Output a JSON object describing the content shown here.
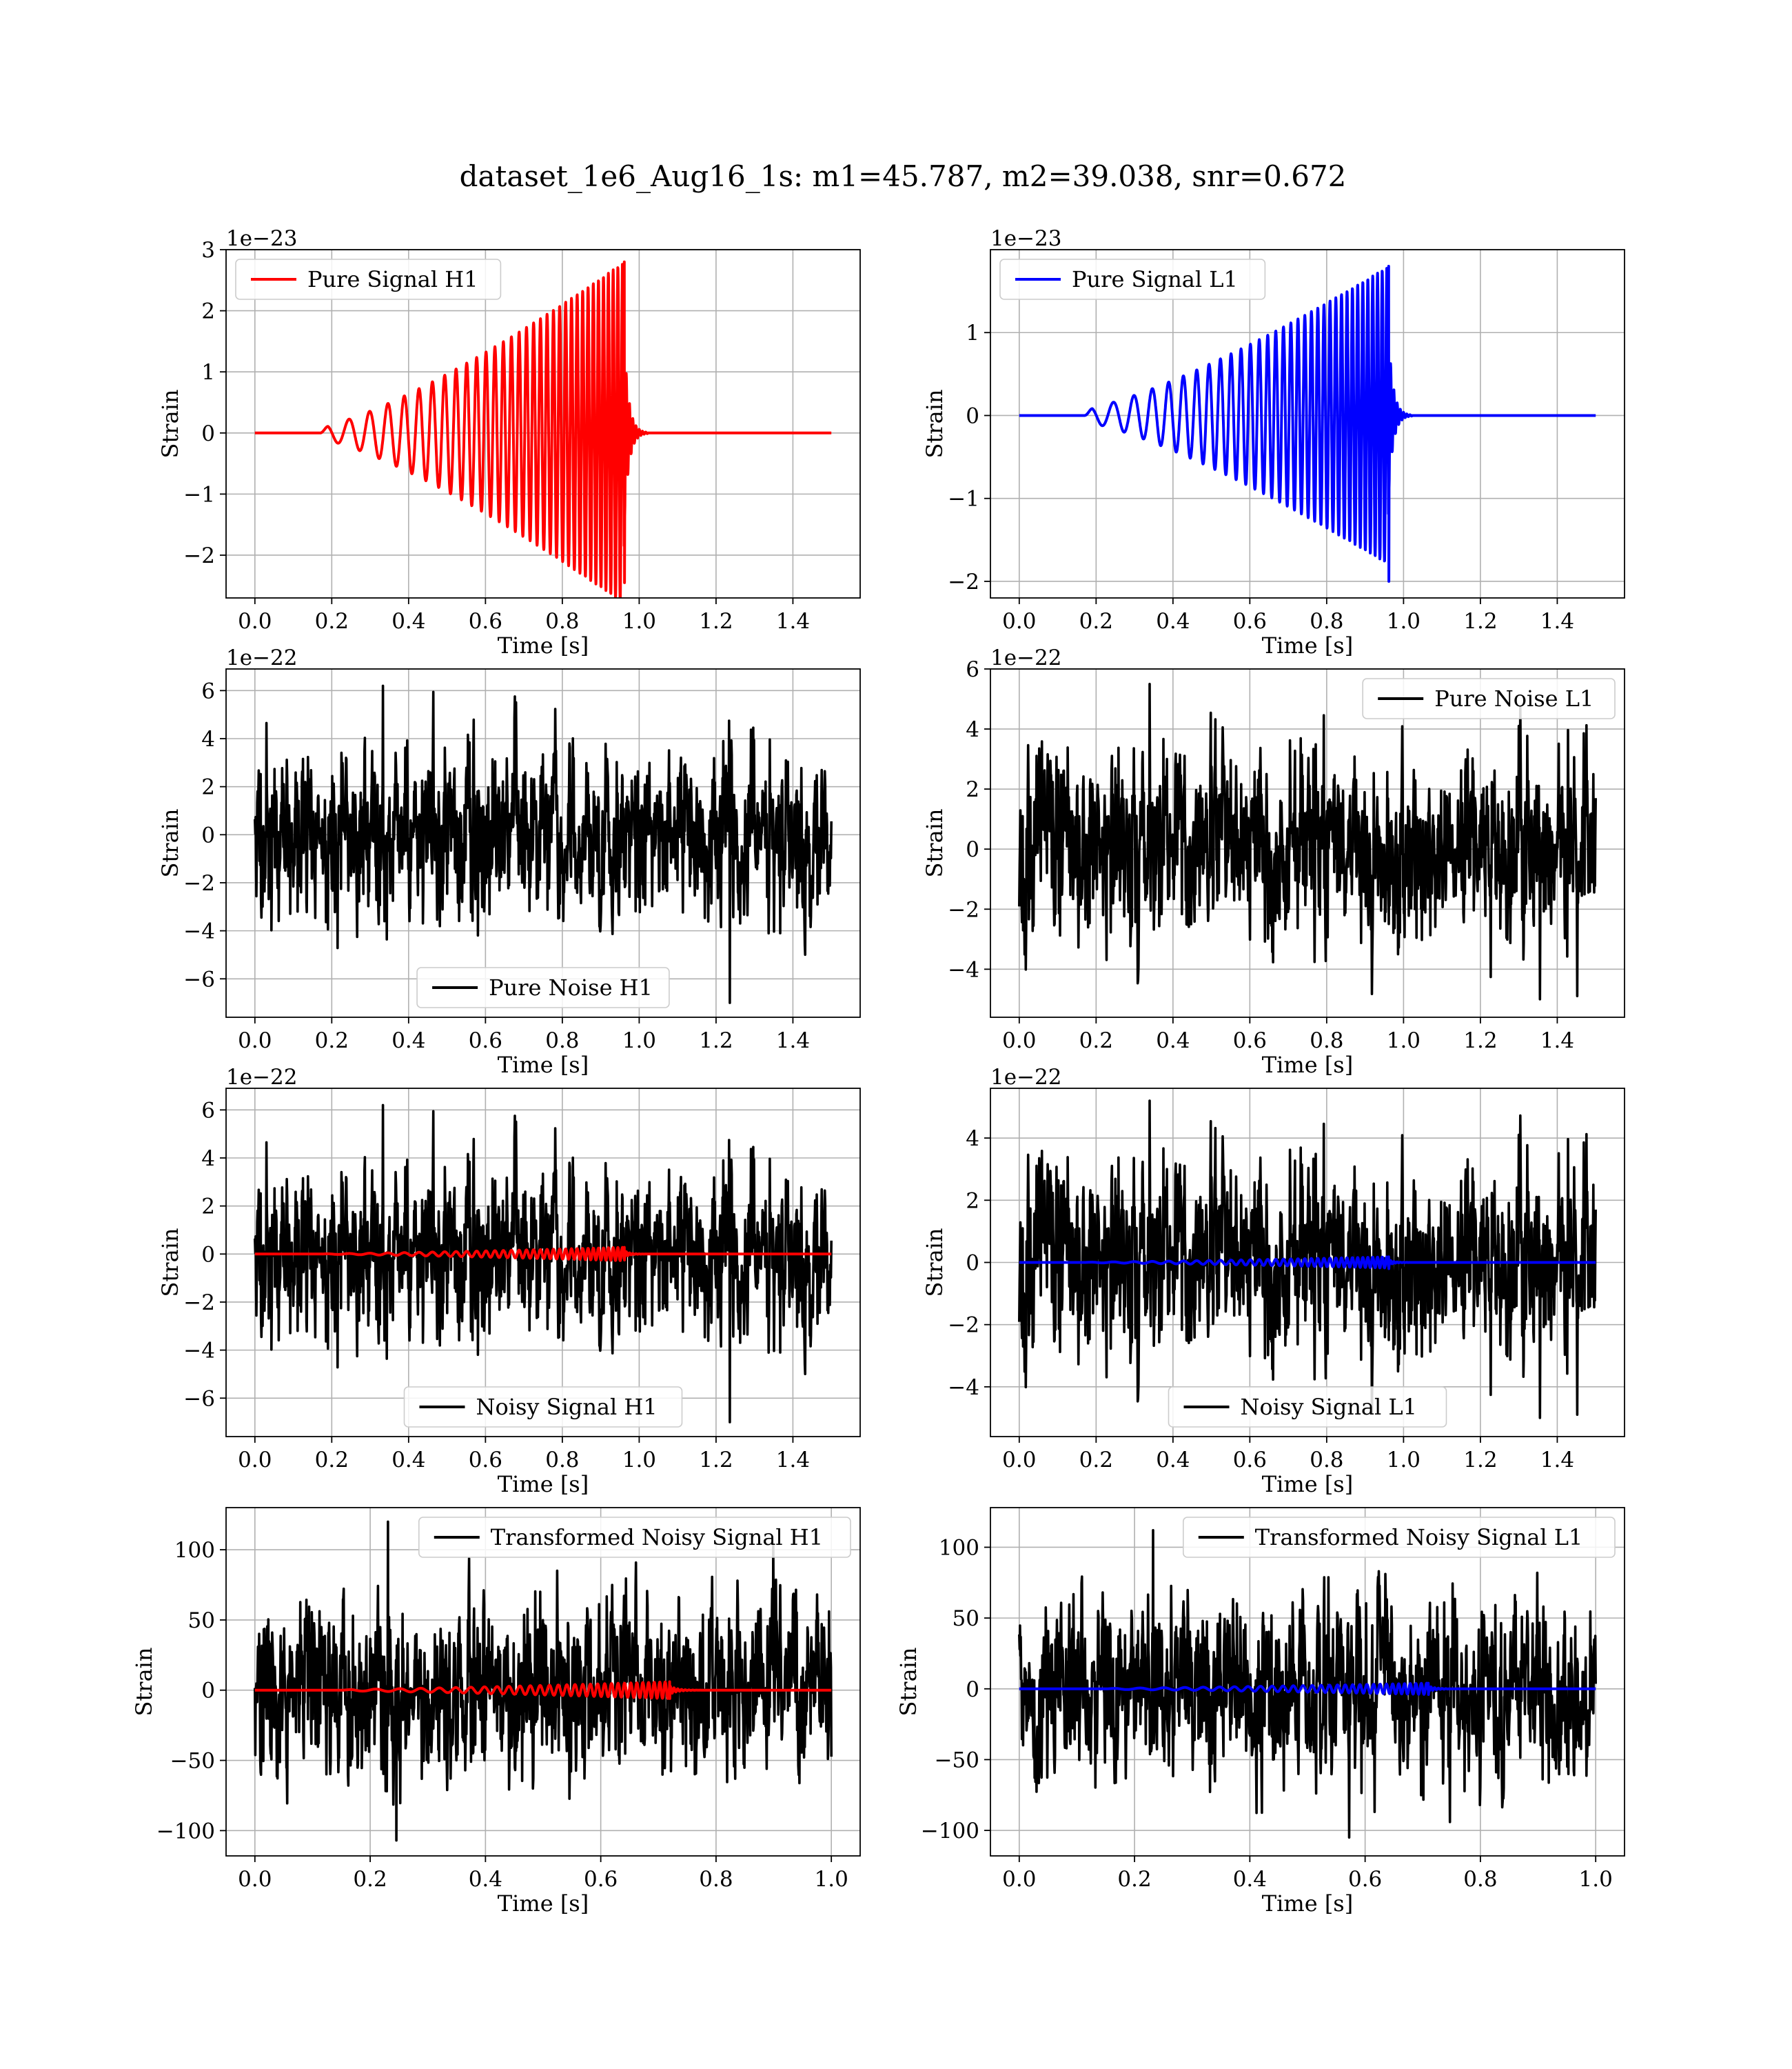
{
  "figure": {
    "title": "dataset_1e6_Aug16_1s: m1=45.787, m2=39.038, snr=0.672"
  },
  "colors": {
    "h1_signal": "#ff0000",
    "l1_signal": "#0000ff",
    "noise": "#000000",
    "grid": "#b0b0b0"
  },
  "chart_data": [
    {
      "type": "line",
      "panel": "pure-signal-h1",
      "xlabel": "Time [s]",
      "ylabel": "Strain",
      "offset_text": "1e−23",
      "xlim": [
        -0.075,
        1.575
      ],
      "ylim": [
        -2.7,
        3.0
      ],
      "xticks": [
        0.0,
        0.2,
        0.4,
        0.6,
        0.8,
        1.0,
        1.2,
        1.4
      ],
      "xticklabels": [
        "0.0",
        "0.2",
        "0.4",
        "0.6",
        "0.8",
        "1.0",
        "1.2",
        "1.4"
      ],
      "yticks": [
        -2,
        -1,
        0,
        1,
        2,
        3
      ],
      "yticklabels": [
        "−2",
        "−1",
        "0",
        "1",
        "2",
        "3"
      ],
      "grid": true,
      "legend_position": "upper-left",
      "series": [
        {
          "name": "Pure Signal H1",
          "color": "#ff0000",
          "kind": "chirp",
          "x_range": [
            0.0,
            1.5
          ],
          "t_onset": 0.17,
          "t_merger": 0.962,
          "f_start": 16,
          "f_end": 85,
          "amp_start": 0.1,
          "amp_end": 2.8,
          "amp_min": 2.45
        }
      ]
    },
    {
      "type": "line",
      "panel": "pure-signal-l1",
      "xlabel": "Time [s]",
      "ylabel": "Strain",
      "offset_text": "1e−23",
      "xlim": [
        -0.075,
        1.575
      ],
      "ylim": [
        -2.2,
        2.0
      ],
      "xticks": [
        0.0,
        0.2,
        0.4,
        0.6,
        0.8,
        1.0,
        1.2,
        1.4
      ],
      "xticklabels": [
        "0.0",
        "0.2",
        "0.4",
        "0.6",
        "0.8",
        "1.0",
        "1.2",
        "1.4"
      ],
      "yticks": [
        -2,
        -1,
        0,
        1
      ],
      "yticklabels": [
        "−2",
        "−1",
        "0",
        "1"
      ],
      "grid": true,
      "legend_position": "upper-left",
      "series": [
        {
          "name": "Pure Signal L1",
          "color": "#0000ff",
          "kind": "chirp",
          "x_range": [
            0.0,
            1.5
          ],
          "t_onset": 0.17,
          "t_merger": 0.962,
          "f_start": 16,
          "f_end": 85,
          "amp_start": 0.08,
          "amp_end": 1.8,
          "amp_min": 2.0
        }
      ]
    },
    {
      "type": "line",
      "panel": "pure-noise-h1",
      "xlabel": "Time [s]",
      "ylabel": "Strain",
      "offset_text": "1e−22",
      "xlim": [
        -0.075,
        1.575
      ],
      "ylim": [
        -7.6,
        6.9
      ],
      "xticks": [
        0.0,
        0.2,
        0.4,
        0.6,
        0.8,
        1.0,
        1.2,
        1.4
      ],
      "xticklabels": [
        "0.0",
        "0.2",
        "0.4",
        "0.6",
        "0.8",
        "1.0",
        "1.2",
        "1.4"
      ],
      "yticks": [
        -6,
        -4,
        -2,
        0,
        2,
        4,
        6
      ],
      "yticklabels": [
        "−6",
        "−4",
        "−2",
        "0",
        "2",
        "4",
        "6"
      ],
      "grid": true,
      "legend_position": "lower-center",
      "series": [
        {
          "name": "Pure Noise H1",
          "color": "#000000",
          "kind": "noise",
          "x_range": [
            0.0,
            1.5
          ],
          "seed": 11,
          "sigma": 1.7,
          "max": 6.2,
          "min": -7.0
        }
      ]
    },
    {
      "type": "line",
      "panel": "pure-noise-l1",
      "xlabel": "Time [s]",
      "ylabel": "Strain",
      "offset_text": "1e−22",
      "xlim": [
        -0.075,
        1.575
      ],
      "ylim": [
        -5.6,
        6.0
      ],
      "xticks": [
        0.0,
        0.2,
        0.4,
        0.6,
        0.8,
        1.0,
        1.2,
        1.4
      ],
      "xticklabels": [
        "0.0",
        "0.2",
        "0.4",
        "0.6",
        "0.8",
        "1.0",
        "1.2",
        "1.4"
      ],
      "yticks": [
        -4,
        -2,
        0,
        2,
        4,
        6
      ],
      "yticklabels": [
        "−4",
        "−2",
        "0",
        "2",
        "4",
        "6"
      ],
      "grid": true,
      "legend_position": "upper-right",
      "series": [
        {
          "name": "Pure Noise L1",
          "color": "#000000",
          "kind": "noise",
          "x_range": [
            0.0,
            1.5
          ],
          "seed": 23,
          "sigma": 1.5,
          "max": 5.5,
          "min": -5.0
        }
      ]
    },
    {
      "type": "line",
      "panel": "noisy-signal-h1",
      "xlabel": "Time [s]",
      "ylabel": "Strain",
      "offset_text": "1e−22",
      "xlim": [
        -0.075,
        1.575
      ],
      "ylim": [
        -7.6,
        6.9
      ],
      "xticks": [
        0.0,
        0.2,
        0.4,
        0.6,
        0.8,
        1.0,
        1.2,
        1.4
      ],
      "xticklabels": [
        "0.0",
        "0.2",
        "0.4",
        "0.6",
        "0.8",
        "1.0",
        "1.2",
        "1.4"
      ],
      "yticks": [
        -6,
        -4,
        -2,
        0,
        2,
        4,
        6
      ],
      "yticklabels": [
        "−6",
        "−4",
        "−2",
        "0",
        "2",
        "4",
        "6"
      ],
      "grid": true,
      "legend_position": "lower-center",
      "series": [
        {
          "name": "Noisy Signal H1",
          "color": "#000000",
          "kind": "noise",
          "x_range": [
            0.0,
            1.5
          ],
          "seed": 11,
          "sigma": 1.7,
          "max": 6.2,
          "min": -7.0
        },
        {
          "color": "#ff0000",
          "kind": "chirp",
          "x_range": [
            0.0,
            1.5
          ],
          "t_onset": 0.17,
          "t_merger": 0.962,
          "f_start": 16,
          "f_end": 85,
          "amp_start": 0.01,
          "amp_end": 0.28,
          "amp_min": 0.25
        }
      ]
    },
    {
      "type": "line",
      "panel": "noisy-signal-l1",
      "xlabel": "Time [s]",
      "ylabel": "Strain",
      "offset_text": "1e−22",
      "xlim": [
        -0.075,
        1.575
      ],
      "ylim": [
        -5.6,
        5.6
      ],
      "xticks": [
        0.0,
        0.2,
        0.4,
        0.6,
        0.8,
        1.0,
        1.2,
        1.4
      ],
      "xticklabels": [
        "0.0",
        "0.2",
        "0.4",
        "0.6",
        "0.8",
        "1.0",
        "1.2",
        "1.4"
      ],
      "yticks": [
        -4,
        -2,
        0,
        2,
        4
      ],
      "yticklabels": [
        "−4",
        "−2",
        "0",
        "2",
        "4"
      ],
      "grid": true,
      "legend_position": "lower-center",
      "series": [
        {
          "name": "Noisy Signal L1",
          "color": "#000000",
          "kind": "noise",
          "x_range": [
            0.0,
            1.5
          ],
          "seed": 23,
          "sigma": 1.5,
          "max": 5.2,
          "min": -5.0
        },
        {
          "color": "#0000ff",
          "kind": "chirp",
          "x_range": [
            0.0,
            1.5
          ],
          "t_onset": 0.17,
          "t_merger": 0.962,
          "f_start": 16,
          "f_end": 85,
          "amp_start": 0.01,
          "amp_end": 0.18,
          "amp_min": 0.2
        }
      ]
    },
    {
      "type": "line",
      "panel": "transformed-noisy-signal-h1",
      "xlabel": "Time [s]",
      "ylabel": "Strain",
      "offset_text": "",
      "xlim": [
        -0.05,
        1.05
      ],
      "ylim": [
        -118,
        130
      ],
      "xticks": [
        0.0,
        0.2,
        0.4,
        0.6,
        0.8,
        1.0
      ],
      "xticklabels": [
        "0.0",
        "0.2",
        "0.4",
        "0.6",
        "0.8",
        "1.0"
      ],
      "yticks": [
        -100,
        -50,
        0,
        50,
        100
      ],
      "yticklabels": [
        "−100",
        "−50",
        "0",
        "50",
        "100"
      ],
      "grid": true,
      "legend_position": "upper-right",
      "series": [
        {
          "name": "Transformed Noisy Signal H1",
          "color": "#000000",
          "kind": "noise",
          "x_range": [
            0.0,
            1.0
          ],
          "seed": 37,
          "sigma": 30,
          "max": 120,
          "min": -107
        },
        {
          "color": "#ff0000",
          "kind": "chirp",
          "x_range": [
            0.0,
            1.0
          ],
          "t_onset": 0.15,
          "t_merger": 0.72,
          "f_start": 20,
          "f_end": 110,
          "amp_start": 0.5,
          "amp_end": 6,
          "amp_min": 6
        }
      ]
    },
    {
      "type": "line",
      "panel": "transformed-noisy-signal-l1",
      "xlabel": "Time [s]",
      "ylabel": "Strain",
      "offset_text": "",
      "xlim": [
        -0.05,
        1.05
      ],
      "ylim": [
        -118,
        128
      ],
      "xticks": [
        0.0,
        0.2,
        0.4,
        0.6,
        0.8,
        1.0
      ],
      "xticklabels": [
        "0.0",
        "0.2",
        "0.4",
        "0.6",
        "0.8",
        "1.0"
      ],
      "yticks": [
        -100,
        -50,
        0,
        50,
        100
      ],
      "yticklabels": [
        "−100",
        "−50",
        "0",
        "50",
        "100"
      ],
      "grid": true,
      "legend_position": "upper-right",
      "series": [
        {
          "name": "Transformed Noisy Signal L1",
          "color": "#000000",
          "kind": "noise",
          "x_range": [
            0.0,
            1.0
          ],
          "seed": 41,
          "sigma": 30,
          "max": 112,
          "min": -105
        },
        {
          "color": "#0000ff",
          "kind": "chirp",
          "x_range": [
            0.0,
            1.0
          ],
          "t_onset": 0.15,
          "t_merger": 0.71,
          "f_start": 20,
          "f_end": 110,
          "amp_start": 0.4,
          "amp_end": 4,
          "amp_min": 4
        }
      ]
    }
  ]
}
